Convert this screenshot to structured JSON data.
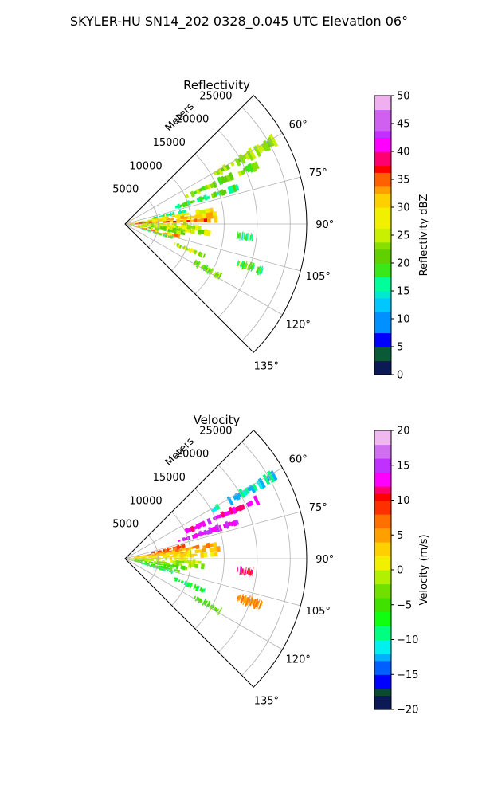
{
  "figure": {
    "title": "SKYLER-HU  SN14_202  0328_0.045 UTC Elevation 06°"
  },
  "chart_data": [
    {
      "type": "heatmap",
      "projection": "polar-sector",
      "title": "Reflectivity",
      "radial_axis_label": "Meters",
      "radial_ticks": [
        5000,
        10000,
        15000,
        20000,
        25000
      ],
      "radial_tick_labels": [
        "5000",
        "10000",
        "15000",
        "20000",
        "25000"
      ],
      "radial_range": [
        0,
        27500
      ],
      "angular_range_deg": [
        45,
        135
      ],
      "angular_ticks_deg": [
        60,
        75,
        90,
        105,
        120,
        135
      ],
      "angular_tick_labels": [
        "60°",
        "75°",
        "90°",
        "105°",
        "120°",
        "135°"
      ],
      "grid": true,
      "colorbar": {
        "label": "Reflectivity dBZ",
        "range": [
          0,
          50
        ],
        "ticks": [
          0,
          5,
          10,
          15,
          20,
          25,
          30,
          35,
          40,
          45,
          50
        ],
        "tick_labels": [
          "0",
          "5",
          "10",
          "15",
          "20",
          "25",
          "30",
          "35",
          "40",
          "45",
          "50"
        ],
        "colors": [
          [
            0,
            "#0b1a55"
          ],
          [
            3,
            "#0a5a3a"
          ],
          [
            5,
            "#0000ff"
          ],
          [
            8,
            "#0090ff"
          ],
          [
            11,
            "#00c8ff"
          ],
          [
            14,
            "#00e8d0"
          ],
          [
            15.5,
            "#00ff9a"
          ],
          [
            18,
            "#3ae81a"
          ],
          [
            20,
            "#60d000"
          ],
          [
            22,
            "#88e000"
          ],
          [
            24,
            "#c8f000"
          ],
          [
            26,
            "#f0f000"
          ],
          [
            30,
            "#ffd000"
          ],
          [
            32,
            "#ffa000"
          ],
          [
            34,
            "#ff6000"
          ],
          [
            36,
            "#ff0000"
          ],
          [
            38,
            "#ff0070"
          ],
          [
            40,
            "#ff00ff"
          ],
          [
            42,
            "#c030ff"
          ],
          [
            44,
            "#d060f0"
          ],
          [
            47,
            "#f0b0f0"
          ],
          [
            50,
            "#ffe8ff"
          ]
        ]
      },
      "echoes": [
        {
          "az": 81,
          "r0": 300,
          "r1": 14000,
          "value": 28
        },
        {
          "az": 84,
          "r0": 800,
          "r1": 15000,
          "value": 30
        },
        {
          "az": 87,
          "r0": 500,
          "r1": 14000,
          "value": 34
        },
        {
          "az": 90,
          "r0": 500,
          "r1": 9500,
          "value": 27
        },
        {
          "az": 93,
          "r0": 500,
          "r1": 11500,
          "value": 26
        },
        {
          "az": 96,
          "r0": 500,
          "r1": 13000,
          "value": 24
        },
        {
          "az": 99,
          "r0": 1000,
          "r1": 9500,
          "value": 22
        },
        {
          "az": 103,
          "r0": 800,
          "r1": 8500,
          "value": 32
        },
        {
          "az": 106,
          "r0": 2500,
          "r1": 7500,
          "value": 20
        },
        {
          "az": 112,
          "r0": 8000,
          "r1": 13000,
          "value": 24
        },
        {
          "az": 119,
          "r0": 12000,
          "r1": 16500,
          "value": 22
        },
        {
          "az": 78,
          "r0": 4000,
          "r1": 9500,
          "value": 18
        },
        {
          "az": 72,
          "r0": 8000,
          "r1": 18000,
          "value": 20
        },
        {
          "az": 66,
          "r0": 10000,
          "r1": 22000,
          "value": 22
        },
        {
          "az": 61,
          "r0": 15000,
          "r1": 26000,
          "value": 24
        },
        {
          "az": 96,
          "r0": 17000,
          "r1": 19500,
          "value": 18
        },
        {
          "az": 109,
          "r0": 18000,
          "r1": 22000,
          "value": 20
        }
      ]
    },
    {
      "type": "heatmap",
      "projection": "polar-sector",
      "title": "Velocity",
      "radial_axis_label": "Meters",
      "radial_ticks": [
        5000,
        10000,
        15000,
        20000,
        25000
      ],
      "radial_tick_labels": [
        "5000",
        "10000",
        "15000",
        "20000",
        "25000"
      ],
      "radial_range": [
        0,
        27500
      ],
      "angular_range_deg": [
        45,
        135
      ],
      "angular_ticks_deg": [
        60,
        75,
        90,
        105,
        120,
        135
      ],
      "angular_tick_labels": [
        "60°",
        "75°",
        "90°",
        "105°",
        "120°",
        "135°"
      ],
      "grid": true,
      "colorbar": {
        "label": "Velocity (m/s)",
        "range": [
          -20,
          20
        ],
        "ticks": [
          -20,
          -15,
          -10,
          -5,
          0,
          5,
          10,
          15,
          20
        ],
        "tick_labels": [
          "−20",
          "−15",
          "−10",
          "−5",
          "0",
          "5",
          "10",
          "15",
          "20"
        ],
        "colors": [
          [
            -20,
            "#0b1a55"
          ],
          [
            -18,
            "#0a4a30"
          ],
          [
            -16.5,
            "#0000ff"
          ],
          [
            -15,
            "#0060ff"
          ],
          [
            -13,
            "#00b0ff"
          ],
          [
            -11.5,
            "#00f0f0"
          ],
          [
            -10,
            "#00ff80"
          ],
          [
            -8,
            "#10ff10"
          ],
          [
            -6,
            "#40e000"
          ],
          [
            -4,
            "#70e000"
          ],
          [
            -2,
            "#b0f000"
          ],
          [
            0,
            "#f0f000"
          ],
          [
            2,
            "#ffd000"
          ],
          [
            4,
            "#ffa000"
          ],
          [
            6,
            "#ff7000"
          ],
          [
            8,
            "#ff3000"
          ],
          [
            10,
            "#ff0000"
          ],
          [
            11,
            "#ff0070"
          ],
          [
            12,
            "#ff00ff"
          ],
          [
            14,
            "#c030ff"
          ],
          [
            16,
            "#d070f0"
          ],
          [
            18,
            "#f0b8f0"
          ],
          [
            20,
            "#ffe8ff"
          ]
        ]
      },
      "echoes": [
        {
          "az": 81,
          "r0": 300,
          "r1": 14000,
          "value": 5
        },
        {
          "az": 84,
          "r0": 800,
          "r1": 15000,
          "value": 3
        },
        {
          "az": 87,
          "r0": 500,
          "r1": 14000,
          "value": 2
        },
        {
          "az": 90,
          "r0": 500,
          "r1": 9500,
          "value": 1
        },
        {
          "az": 93,
          "r0": 500,
          "r1": 11500,
          "value": -1
        },
        {
          "az": 96,
          "r0": 500,
          "r1": 13000,
          "value": -2
        },
        {
          "az": 99,
          "r0": 1000,
          "r1": 9500,
          "value": -4
        },
        {
          "az": 103,
          "r0": 800,
          "r1": 8500,
          "value": -5
        },
        {
          "az": 106,
          "r0": 2500,
          "r1": 7500,
          "value": -8
        },
        {
          "az": 112,
          "r0": 8000,
          "r1": 13000,
          "value": -7
        },
        {
          "az": 119,
          "r0": 12000,
          "r1": 16500,
          "value": -4
        },
        {
          "az": 78,
          "r0": 4000,
          "r1": 9500,
          "value": 8
        },
        {
          "az": 72,
          "r0": 8000,
          "r1": 18000,
          "value": 14
        },
        {
          "az": 66,
          "r0": 10000,
          "r1": 22000,
          "value": 13
        },
        {
          "az": 61,
          "r0": 15000,
          "r1": 26000,
          "value": -11
        },
        {
          "az": 96,
          "r0": 17000,
          "r1": 19500,
          "value": 11
        },
        {
          "az": 109,
          "r0": 18000,
          "r1": 22000,
          "value": 6
        }
      ]
    }
  ]
}
